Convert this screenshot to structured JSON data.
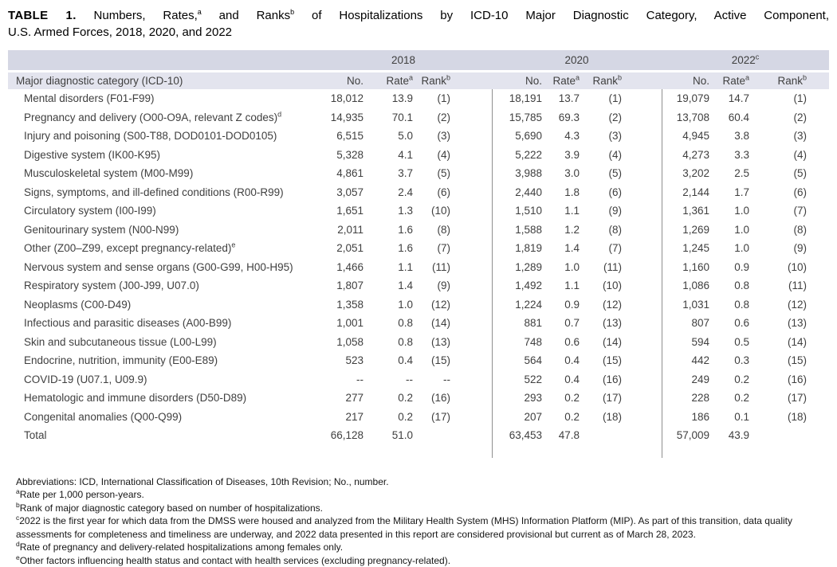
{
  "title": {
    "bold_label": "TABLE 1.",
    "seg1": "Numbers, Rates,",
    "sup_a": "a",
    "seg2": "and Ranks",
    "sup_b": "b",
    "seg3": "of Hospitalizations by ICD-10 Major Diagnostic Category, Active Component,",
    "line2": "U.S. Armed Forces, 2018, 2020, and 2022"
  },
  "colors": {
    "header_band": "#d5d7e4",
    "subheader_band": "#e3e4ee",
    "divider": "#8f8f8f"
  },
  "table": {
    "category_header": "Major diagnostic category (ICD-10)",
    "year_groups": [
      {
        "label": "2018",
        "sup": ""
      },
      {
        "label": "2020",
        "sup": ""
      },
      {
        "label": "2022",
        "sup": "c"
      }
    ],
    "col_headers": {
      "no": "No.",
      "rate": "Rate",
      "rate_sup": "a",
      "rank": "Rank",
      "rank_sup": "b"
    },
    "rows": [
      {
        "category": "Mental disorders (F01-F99)",
        "sup": "",
        "values": [
          "18,012",
          "13.9",
          "(1)",
          "18,191",
          "13.7",
          "(1)",
          "19,079",
          "14.7",
          "(1)"
        ]
      },
      {
        "category": "Pregnancy and delivery (O00-O9A, relevant Z codes)",
        "sup": "d",
        "values": [
          "14,935",
          "70.1",
          "(2)",
          "15,785",
          "69.3",
          "(2)",
          "13,708",
          "60.4",
          "(2)"
        ]
      },
      {
        "category": "Injury and poisoning (S00-T88, DOD0101-DOD0105)",
        "sup": "",
        "values": [
          "6,515",
          "5.0",
          "(3)",
          "5,690",
          "4.3",
          "(3)",
          "4,945",
          "3.8",
          "(3)"
        ]
      },
      {
        "category": "Digestive system (IK00-K95)",
        "sup": "",
        "values": [
          "5,328",
          "4.1",
          "(4)",
          "5,222",
          "3.9",
          "(4)",
          "4,273",
          "3.3",
          "(4)"
        ]
      },
      {
        "category": "Musculoskeletal system (M00-M99)",
        "sup": "",
        "values": [
          "4,861",
          "3.7",
          "(5)",
          "3,988",
          "3.0",
          "(5)",
          "3,202",
          "2.5",
          "(5)"
        ]
      },
      {
        "category": "Signs, symptoms, and ill-defined conditions (R00-R99)",
        "sup": "",
        "values": [
          "3,057",
          "2.4",
          "(6)",
          "2,440",
          "1.8",
          "(6)",
          "2,144",
          "1.7",
          "(6)"
        ]
      },
      {
        "category": "Circulatory system (I00-I99)",
        "sup": "",
        "values": [
          "1,651",
          "1.3",
          "(10)",
          "1,510",
          "1.1",
          "(9)",
          "1,361",
          "1.0",
          "(7)"
        ]
      },
      {
        "category": "Genitourinary system (N00-N99)",
        "sup": "",
        "values": [
          "2,011",
          "1.6",
          "(8)",
          "1,588",
          "1.2",
          "(8)",
          "1,269",
          "1.0",
          "(8)"
        ]
      },
      {
        "category": "Other (Z00–Z99, except pregnancy-related)",
        "sup": "e",
        "values": [
          "2,051",
          "1.6",
          "(7)",
          "1,819",
          "1.4",
          "(7)",
          "1,245",
          "1.0",
          "(9)"
        ]
      },
      {
        "category": "Nervous system and sense organs (G00-G99, H00-H95)",
        "sup": "",
        "values": [
          "1,466",
          "1.1",
          "(11)",
          "1,289",
          "1.0",
          "(11)",
          "1,160",
          "0.9",
          "(10)"
        ]
      },
      {
        "category": "Respiratory system (J00-J99, U07.0)",
        "sup": "",
        "values": [
          "1,807",
          "1.4",
          "(9)",
          "1,492",
          "1.1",
          "(10)",
          "1,086",
          "0.8",
          "(11)"
        ]
      },
      {
        "category": "Neoplasms (C00-D49)",
        "sup": "",
        "values": [
          "1,358",
          "1.0",
          "(12)",
          "1,224",
          "0.9",
          "(12)",
          "1,031",
          "0.8",
          "(12)"
        ]
      },
      {
        "category": "Infectious and parasitic diseases (A00-B99)",
        "sup": "",
        "values": [
          "1,001",
          "0.8",
          "(14)",
          "881",
          "0.7",
          "(13)",
          "807",
          "0.6",
          "(13)"
        ]
      },
      {
        "category": "Skin and subcutaneous tissue (L00-L99)",
        "sup": "",
        "values": [
          "1,058",
          "0.8",
          "(13)",
          "748",
          "0.6",
          "(14)",
          "594",
          "0.5",
          "(14)"
        ]
      },
      {
        "category": "Endocrine, nutrition, immunity (E00-E89)",
        "sup": "",
        "values": [
          "523",
          "0.4",
          "(15)",
          "564",
          "0.4",
          "(15)",
          "442",
          "0.3",
          "(15)"
        ]
      },
      {
        "category": "COVID-19 (U07.1, U09.9)",
        "sup": "",
        "values": [
          "--",
          "--",
          "--",
          "522",
          "0.4",
          "(16)",
          "249",
          "0.2",
          "(16)"
        ]
      },
      {
        "category": "Hematologic and immune disorders (D50-D89)",
        "sup": "",
        "values": [
          "277",
          "0.2",
          "(16)",
          "293",
          "0.2",
          "(17)",
          "228",
          "0.2",
          "(17)"
        ]
      },
      {
        "category": "Congenital anomalies (Q00-Q99)",
        "sup": "",
        "values": [
          "217",
          "0.2",
          "(17)",
          "207",
          "0.2",
          "(18)",
          "186",
          "0.1",
          "(18)"
        ]
      }
    ],
    "total_row": {
      "category": "Total",
      "sup": "",
      "values": [
        "66,128",
        "51.0",
        "",
        "63,453",
        "47.8",
        "",
        "57,009",
        "43.9",
        ""
      ]
    }
  },
  "footnotes": [
    {
      "sup": "",
      "text": "Abbreviations: ICD, International Classification of Diseases, 10th Revision; No., number."
    },
    {
      "sup": "a",
      "text": "Rate per 1,000 person-years."
    },
    {
      "sup": "b",
      "text": "Rank of major diagnostic category based on number of hospitalizations."
    },
    {
      "sup": "c",
      "text": "2022 is the first year for which data from the DMSS were housed and analyzed from the Military Health System (MHS) Information Platform (MIP). As part of this transition, data quality assessments for completeness and timeliness are underway, and 2022 data presented in this report are considered provisional but current as of March 28, 2023."
    },
    {
      "sup": "d",
      "text": "Rate of pregnancy and delivery-related hospitalizations among females only."
    },
    {
      "sup": "e",
      "text": "Other factors influencing health status and contact with health services (excluding pregnancy-related)."
    }
  ]
}
